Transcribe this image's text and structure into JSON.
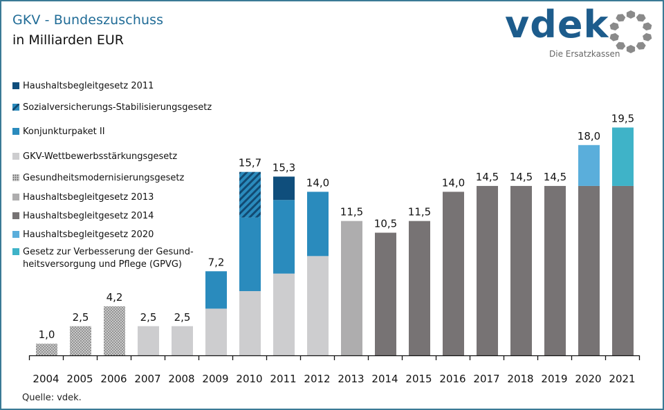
{
  "header": {
    "title": "GKV - Bundeszuschuss",
    "subtitle": "in Milliarden EUR"
  },
  "logo": {
    "name": "vdek",
    "tagline": "Die Ersatzkassen",
    "icon": "dotted-ring-icon",
    "brand_color": "#1d5c8c"
  },
  "source": "Quelle: vdek.",
  "chart_data": {
    "type": "bar",
    "stacked": true,
    "title": "GKV - Bundeszuschuss",
    "subtitle": "in Milliarden EUR",
    "xlabel": "",
    "ylabel": "",
    "ylim": [
      0,
      20
    ],
    "grid": false,
    "legend_position": "left",
    "categories": [
      "2004",
      "2005",
      "2006",
      "2007",
      "2008",
      "2009",
      "2010",
      "2011",
      "2012",
      "2013",
      "2014",
      "2015",
      "2016",
      "2017",
      "2018",
      "2019",
      "2020",
      "2021"
    ],
    "totals": [
      "1,0",
      "2,5",
      "4,2",
      "2,5",
      "2,5",
      "7,2",
      "15,7",
      "15,3",
      "14,0",
      "11,5",
      "10,5",
      "11,5",
      "14,0",
      "14,5",
      "14,5",
      "14,5",
      "18,0",
      "19,5"
    ],
    "series": [
      {
        "name": "Gesundheitsmodernisierungsgesetz",
        "color": "#b8b8b8",
        "pattern": "dots",
        "values": [
          1.0,
          2.5,
          4.2,
          0,
          0,
          0,
          0,
          0,
          0,
          0,
          0,
          0,
          0,
          0,
          0,
          0,
          0,
          0
        ]
      },
      {
        "name": "GKV-Wettbewerbsstärkungsgesetz",
        "color": "#cdcdcf",
        "pattern": "solid",
        "values": [
          0,
          0,
          0,
          2.5,
          2.5,
          4.0,
          5.5,
          7.0,
          8.5,
          0,
          0,
          0,
          0,
          0,
          0,
          0,
          0,
          0
        ]
      },
      {
        "name": "Konjunkturpaket II",
        "color": "#2a8bbd",
        "pattern": "solid",
        "values": [
          0,
          0,
          0,
          0,
          0,
          3.2,
          6.3,
          6.3,
          5.5,
          0,
          0,
          0,
          0,
          0,
          0,
          0,
          0,
          0
        ]
      },
      {
        "name": "Sozialversicherungs-Stabilisierungsgesetz",
        "color": "#2a8bbd",
        "pattern": "hatch",
        "values": [
          0,
          0,
          0,
          0,
          0,
          0,
          3.9,
          0,
          0,
          0,
          0,
          0,
          0,
          0,
          0,
          0,
          0,
          0
        ]
      },
      {
        "name": "Haushaltsbegleitgesetz 2011",
        "color": "#0f4e7c",
        "pattern": "solid",
        "values": [
          0,
          0,
          0,
          0,
          0,
          0,
          0,
          2.0,
          0,
          0,
          0,
          0,
          0,
          0,
          0,
          0,
          0,
          0
        ]
      },
      {
        "name": "Haushaltsbegleitgesetz 2013",
        "color": "#aeadae",
        "pattern": "solid",
        "values": [
          0,
          0,
          0,
          0,
          0,
          0,
          0,
          0,
          0,
          11.5,
          0,
          0,
          0,
          0,
          0,
          0,
          0,
          0
        ]
      },
      {
        "name": "Haushaltsbegleitgesetz 2014",
        "color": "#777374",
        "pattern": "solid",
        "values": [
          0,
          0,
          0,
          0,
          0,
          0,
          0,
          0,
          0,
          0,
          10.5,
          11.5,
          14.0,
          14.5,
          14.5,
          14.5,
          14.5,
          14.5
        ]
      },
      {
        "name": "Haushaltsbegleitgesetz 2020",
        "color": "#5aaedb",
        "pattern": "solid",
        "values": [
          0,
          0,
          0,
          0,
          0,
          0,
          0,
          0,
          0,
          0,
          0,
          0,
          0,
          0,
          0,
          0,
          3.5,
          0
        ]
      },
      {
        "name": "Gesetz zur Verbesserung der Gesundheitsversorgung und Pflege (GPVG)",
        "color": "#3fb3c8",
        "pattern": "solid",
        "values": [
          0,
          0,
          0,
          0,
          0,
          0,
          0,
          0,
          0,
          0,
          0,
          0,
          0,
          0,
          0,
          0,
          0,
          5.0
        ]
      }
    ],
    "legend": [
      {
        "label": "Haushaltsbegleitgesetz  2011",
        "color": "#0f4e7c",
        "pattern": "solid"
      },
      {
        "label": "Sozialversicherungs-Stabilisierungsgesetz",
        "color": "#2a8bbd",
        "pattern": "hatch"
      },
      {
        "label": "Konjunkturpaket II",
        "color": "#2a8bbd",
        "pattern": "solid"
      },
      {
        "label": "GKV-Wettbewerbsstärkungsgesetz",
        "color": "#cdcdcf",
        "pattern": "solid"
      },
      {
        "label": "Gesundheitsmodernisierungsgesetz",
        "color": "#b8b8b8",
        "pattern": "dots"
      },
      {
        "label": "Haushaltsbegleitgesetz  2013",
        "color": "#aeadae",
        "pattern": "solid"
      },
      {
        "label": "Haushaltsbegleitgesetz  2014",
        "color": "#777374",
        "pattern": "solid"
      },
      {
        "label": "Haushaltsbegleitgesetz  2020",
        "color": "#5aaedb",
        "pattern": "solid"
      },
      {
        "label": "Gesetz zur Verbesserung der Gesund-",
        "label2": "heitsversorgung und Pflege (GPVG)",
        "color": "#3fb3c8",
        "pattern": "solid"
      }
    ]
  }
}
